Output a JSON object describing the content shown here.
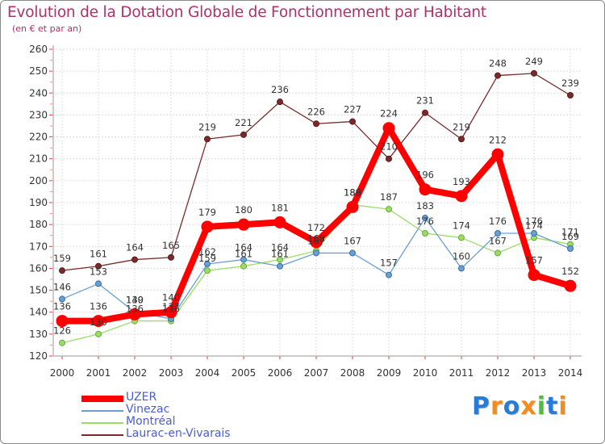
{
  "chart_data": {
    "type": "line",
    "title": "Evolution de la Dotation Globale de Fonctionnement par Habitant",
    "subtitle": "(en € et par an)",
    "xlabel": "",
    "ylabel": "",
    "ylim": [
      120,
      260
    ],
    "ytick_step": 10,
    "grid": true,
    "x": [
      "2000",
      "2001",
      "2002",
      "2003",
      "2004",
      "2005",
      "2006",
      "2007",
      "2008",
      "2009",
      "2010",
      "2011",
      "2012",
      "2013",
      "2014"
    ],
    "series": [
      {
        "name": "UZER",
        "color": "#ff0000",
        "values": [
          136,
          136,
          139,
          140,
          179,
          180,
          181,
          172,
          188,
          224,
          196,
          193,
          212,
          157,
          152
        ]
      },
      {
        "name": "Vinezac",
        "color": "#6a9fd4",
        "values": [
          146,
          153,
          140,
          137,
          162,
          164,
          161,
          167,
          167,
          157,
          183,
          160,
          176,
          176,
          169
        ]
      },
      {
        "name": "Montréal",
        "color": "#99dd66",
        "values": [
          126,
          130,
          136,
          136,
          159,
          161,
          164,
          168,
          189,
          187,
          176,
          174,
          167,
          174,
          171
        ]
      },
      {
        "name": "Laurac-en-Vivarais",
        "color": "#7a2a2a",
        "values": [
          159,
          161,
          164,
          165,
          219,
          221,
          236,
          226,
          227,
          210,
          231,
          219,
          248,
          249,
          239
        ]
      }
    ]
  },
  "logo": {
    "letters": [
      "P",
      "r",
      "o",
      "x",
      "i",
      "t",
      "i"
    ],
    "colors": [
      "#2a7bd4",
      "#f28c1e",
      "#2a7bd4",
      "#f28c1e",
      "#57b847",
      "#2a7bd4",
      "#f28c1e"
    ]
  }
}
